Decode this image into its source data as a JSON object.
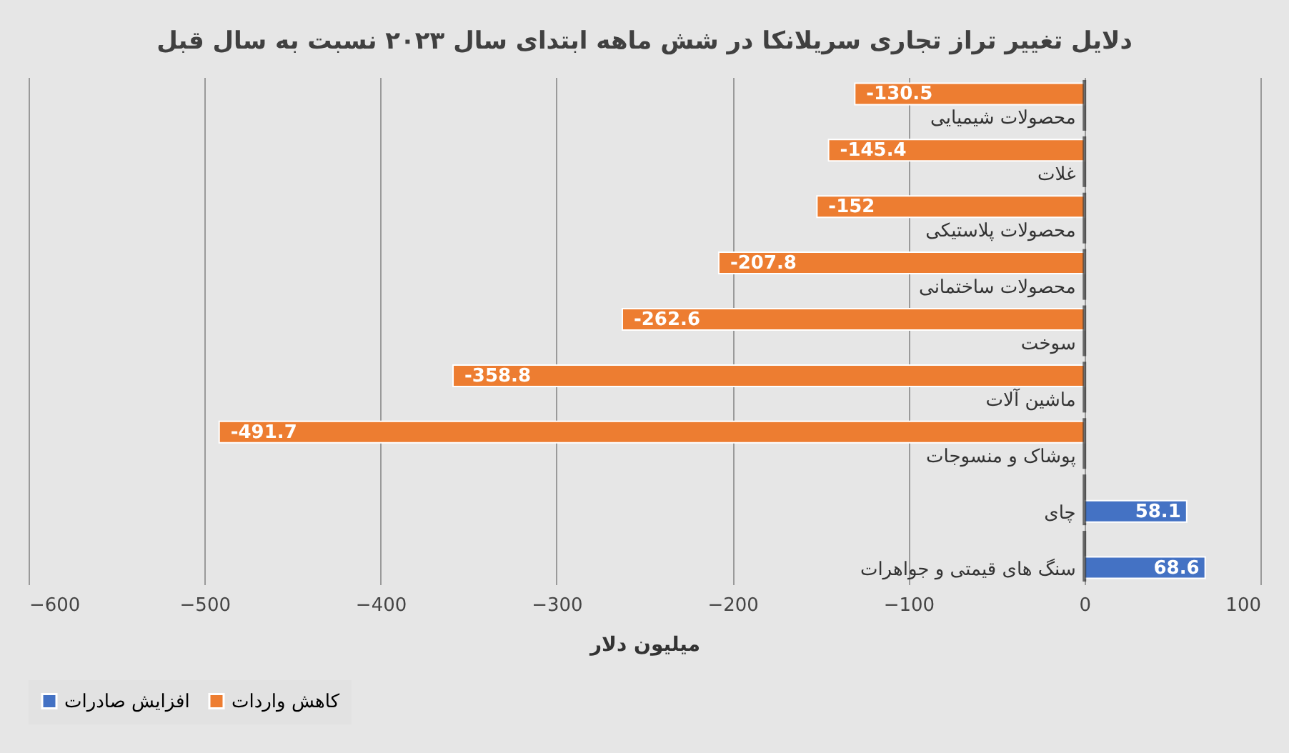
{
  "chart_data": {
    "type": "bar",
    "orientation": "horizontal",
    "title": "دلایل تغییر تراز تجاری سریلانکا در شش ماهه ابتدای سال ۲۰۲۳ نسبت به سال قبل",
    "xlabel": "میلیون دلار",
    "categories": [
      "محصولات شیمیایی",
      "غلات",
      "محصولات پلاستیکی",
      "محصولات ساختمانی",
      "سوخت",
      "ماشین آلات",
      "پوشاک و منسوجات",
      "چای",
      "سنگ های قیمتی و جواهرات"
    ],
    "series": [
      {
        "name": "افزایش صادرات",
        "color": "#4472c4",
        "values": [
          null,
          null,
          null,
          null,
          null,
          null,
          null,
          58.1,
          68.6
        ]
      },
      {
        "name": "کاهش واردات",
        "color": "#ed7d31",
        "values": [
          -130.5,
          -145.4,
          -152,
          -207.8,
          -262.6,
          -358.8,
          -491.7,
          null,
          null
        ]
      }
    ],
    "xlim": [
      -600,
      100
    ],
    "xticks": [
      -600,
      -500,
      -400,
      -300,
      -200,
      -100,
      0,
      100
    ],
    "grid": "x",
    "legend": "bottom",
    "data_labels": true
  }
}
